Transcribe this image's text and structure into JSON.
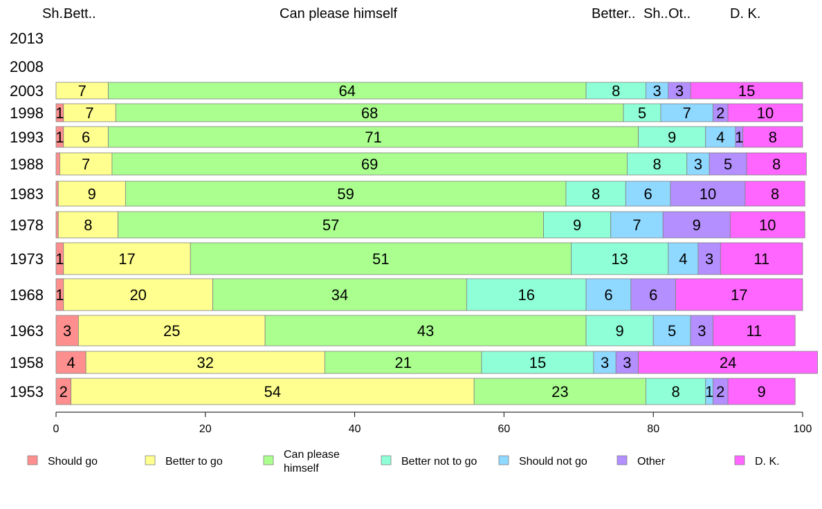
{
  "chart_data": {
    "type": "bar",
    "orientation": "horizontal",
    "stacked": true,
    "xlim": [
      0,
      100
    ],
    "x_ticks": [
      "0",
      "20",
      "40",
      "60",
      "80",
      "100"
    ],
    "column_headers": [
      "Sh..",
      "Bett..",
      "Can please himself",
      "Better..",
      "Sh..",
      "Ot..",
      "D. K."
    ],
    "categories": [
      "2013",
      "2008",
      "2003",
      "1998",
      "1993",
      "1988",
      "1983",
      "1978",
      "1973",
      "1968",
      "1963",
      "1958",
      "1953"
    ],
    "series": [
      {
        "name": "Should go",
        "color": "#ff8f8f",
        "values": [
          null,
          null,
          0,
          1,
          1,
          0.5,
          0.3,
          0.3,
          1,
          1,
          3,
          4,
          2
        ],
        "labels": [
          "",
          "",
          "",
          "1",
          "1",
          "",
          "",
          "",
          "1",
          "1",
          "3",
          "4",
          "2"
        ]
      },
      {
        "name": "Better to go",
        "color": "#ffff8f",
        "values": [
          null,
          null,
          7,
          7,
          6,
          7,
          9,
          8,
          17,
          20,
          25,
          32,
          54
        ],
        "labels": [
          "",
          "",
          "7",
          "7",
          "6",
          "7",
          "9",
          "8",
          "17",
          "20",
          "25",
          "32",
          "54"
        ]
      },
      {
        "name": "Can please himself",
        "color": "#aaff8f",
        "values": [
          null,
          null,
          64,
          68,
          71,
          69,
          59,
          57,
          51,
          34,
          43,
          21,
          23
        ],
        "labels": [
          "",
          "",
          "64",
          "68",
          "71",
          "69",
          "59",
          "57",
          "51",
          "34",
          "43",
          "21",
          "23"
        ]
      },
      {
        "name": "Better not to go",
        "color": "#8fffd8",
        "values": [
          null,
          null,
          8,
          5,
          9,
          8,
          8,
          9,
          13,
          16,
          9,
          15,
          8
        ],
        "labels": [
          "",
          "",
          "8",
          "5",
          "9",
          "8",
          "8",
          "9",
          "13",
          "16",
          "9",
          "15",
          "8"
        ]
      },
      {
        "name": "Should not go",
        "color": "#8fd8ff",
        "values": [
          null,
          null,
          3,
          7,
          4,
          3,
          6,
          7,
          4,
          6,
          5,
          3,
          1
        ],
        "labels": [
          "",
          "",
          "3",
          "7",
          "4",
          "3",
          "6",
          "7",
          "4",
          "6",
          "5",
          "3",
          "1"
        ]
      },
      {
        "name": "Other",
        "color": "#b38fff",
        "values": [
          null,
          null,
          3,
          2,
          1,
          5,
          10,
          9,
          3,
          6,
          3,
          3,
          2
        ],
        "labels": [
          "",
          "",
          "3",
          "2",
          "1",
          "5",
          "10",
          "9",
          "3",
          "6",
          "3",
          "3",
          "2"
        ]
      },
      {
        "name": "D. K.",
        "color": "#ff66ff",
        "values": [
          null,
          null,
          15,
          10,
          8,
          8,
          8,
          10,
          11,
          17,
          11,
          24,
          9
        ],
        "labels": [
          "",
          "",
          "15",
          "10",
          "8",
          "8",
          "8",
          "10",
          "11",
          "17",
          "11",
          "24",
          "9"
        ]
      }
    ],
    "legend": {
      "placement": "bottom",
      "entries": [
        {
          "lines": [
            "Should go"
          ]
        },
        {
          "lines": [
            "Better to go"
          ]
        },
        {
          "lines": [
            "Can please",
            "himself"
          ]
        },
        {
          "lines": [
            "Better not to go"
          ]
        },
        {
          "lines": [
            "Should not go"
          ]
        },
        {
          "lines": [
            "Other"
          ]
        },
        {
          "lines": [
            "D. K."
          ]
        }
      ]
    }
  }
}
